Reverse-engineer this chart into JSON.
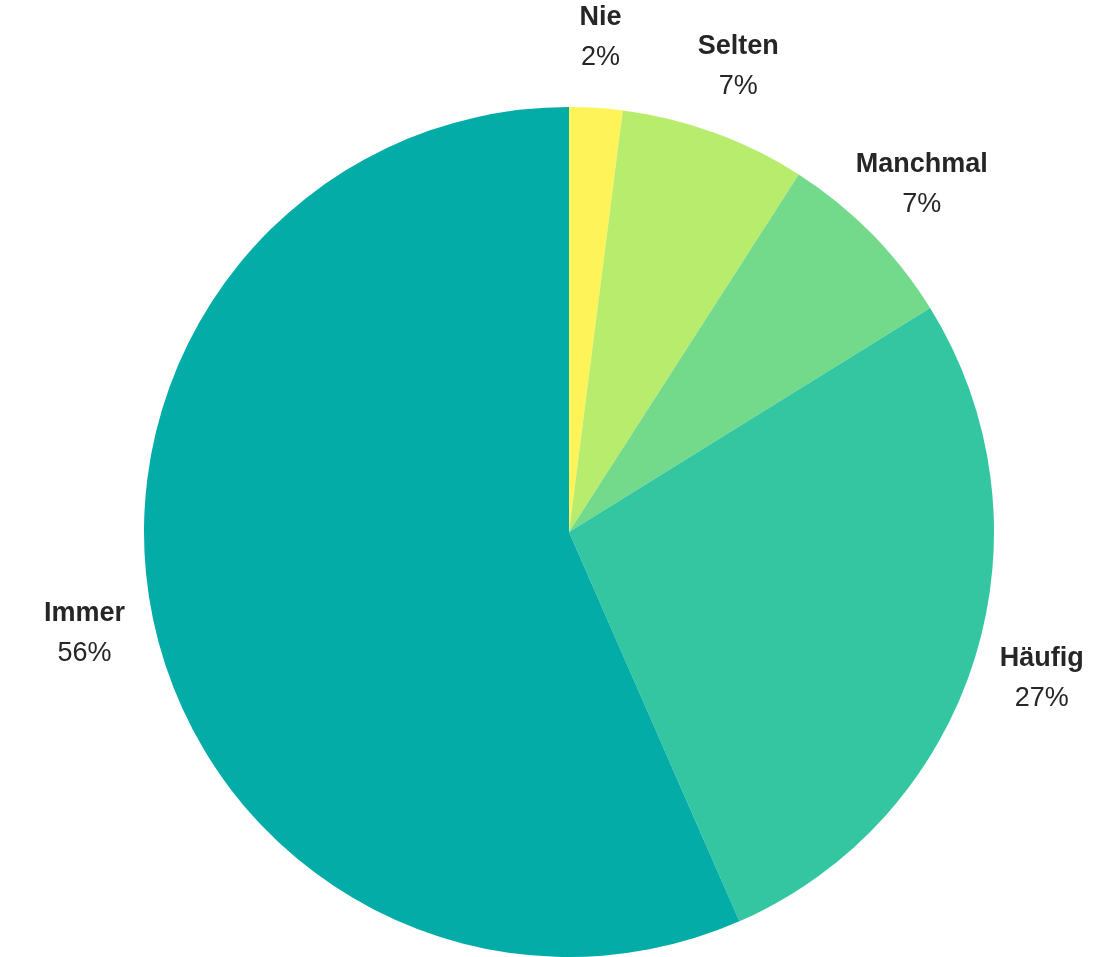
{
  "chart_data": {
    "type": "pie",
    "categories": [
      "Nie",
      "Selten",
      "Manchmal",
      "Häufig",
      "Immer"
    ],
    "values": [
      2,
      7,
      7,
      27,
      56
    ],
    "value_labels": [
      "2%",
      "7%",
      "7%",
      "27%",
      "56%"
    ],
    "colors": [
      "#fff35a",
      "#b7ec6c",
      "#72da8a",
      "#33c6a0",
      "#04aca8"
    ],
    "legend": false
  }
}
